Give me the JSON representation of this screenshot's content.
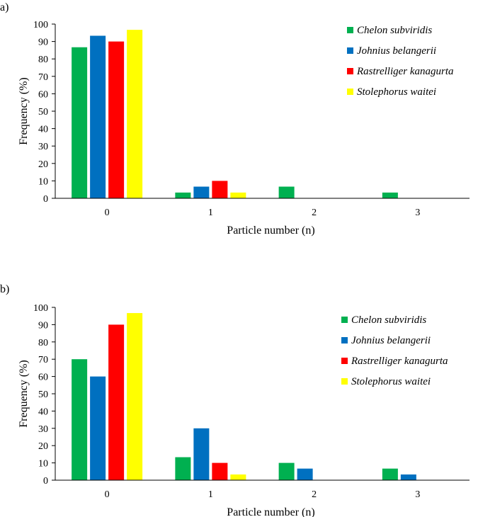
{
  "chart_data": [
    {
      "type": "bar",
      "panel_label": "a)",
      "title": "",
      "xlabel": "Particle number (n)",
      "ylabel": "Frequency (%)",
      "ylim": [
        0,
        100
      ],
      "yticks": [
        "0",
        "10",
        "20",
        "30",
        "40",
        "50",
        "60",
        "70",
        "80",
        "90",
        "100"
      ],
      "categories": [
        "0",
        "1",
        "2",
        "3"
      ],
      "legend_position": "top-right",
      "series": [
        {
          "name": "Chelon subviridis",
          "color": "#00b050",
          "values": [
            86.7,
            3.3,
            6.7,
            3.3
          ]
        },
        {
          "name": "Johnius belangerii",
          "color": "#0070c0",
          "values": [
            93.3,
            6.7,
            0,
            0
          ]
        },
        {
          "name": "Rastrelliger kanagurta",
          "color": "#ff0000",
          "values": [
            90,
            10,
            0,
            0
          ]
        },
        {
          "name": "Stolephorus waitei",
          "color": "#ffff00",
          "values": [
            96.7,
            3.3,
            0,
            0
          ]
        }
      ]
    },
    {
      "type": "bar",
      "panel_label": "b)",
      "title": "",
      "xlabel": "Particle number (n)",
      "ylabel": "Frequency (%)",
      "ylim": [
        0,
        100
      ],
      "yticks": [
        "0",
        "10",
        "20",
        "30",
        "40",
        "50",
        "60",
        "70",
        "80",
        "90",
        "100"
      ],
      "categories": [
        "0",
        "1",
        "2",
        "3"
      ],
      "legend_position": "top-right",
      "series": [
        {
          "name": "Chelon subviridis",
          "color": "#00b050",
          "values": [
            70,
            13.3,
            10,
            6.7
          ]
        },
        {
          "name": "Johnius belangerii",
          "color": "#0070c0",
          "values": [
            60,
            30,
            6.7,
            3.3
          ]
        },
        {
          "name": "Rastrelliger kanagurta",
          "color": "#ff0000",
          "values": [
            90,
            10,
            0,
            0
          ]
        },
        {
          "name": "Stolephorus waitei",
          "color": "#ffff00",
          "values": [
            96.7,
            3.3,
            0,
            0
          ]
        }
      ]
    }
  ]
}
